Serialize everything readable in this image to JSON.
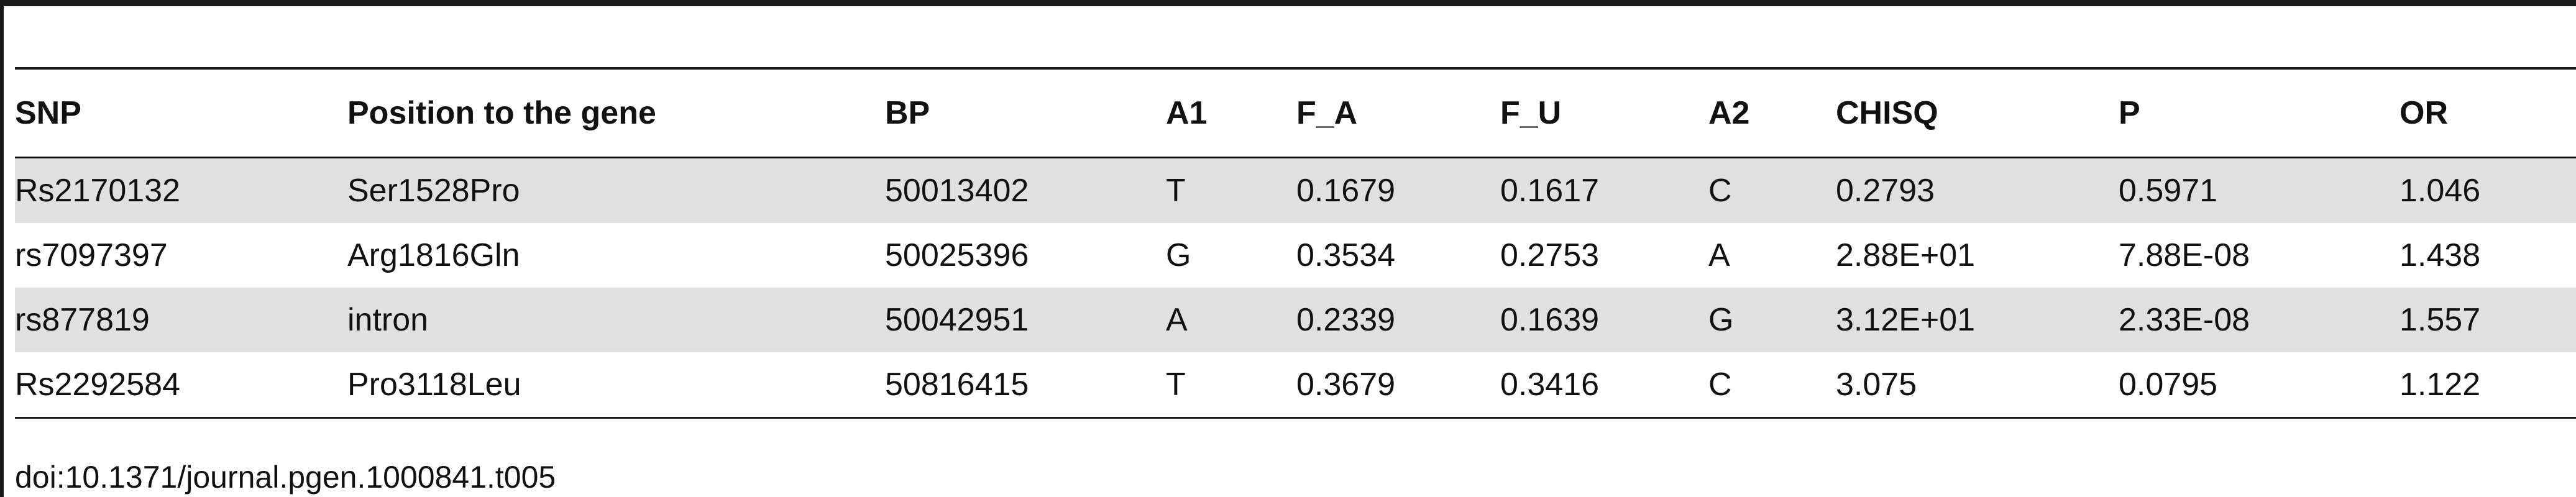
{
  "table": {
    "headers": [
      "SNP",
      "Position to the gene",
      "BP",
      "A1",
      "F_A",
      "F_U",
      "A2",
      "CHISQ",
      "P",
      "OR"
    ],
    "rows": [
      [
        "Rs2170132",
        "Ser1528Pro",
        "50013402",
        "T",
        "0.1679",
        "0.1617",
        "C",
        "0.2793",
        "0.5971",
        "1.046"
      ],
      [
        "rs7097397",
        "Arg1816Gln",
        "50025396",
        "G",
        "0.3534",
        "0.2753",
        "A",
        "2.88E+01",
        "7.88E-08",
        "1.438"
      ],
      [
        "rs877819",
        "intron",
        "50042951",
        "A",
        "0.2339",
        "0.1639",
        "G",
        "3.12E+01",
        "2.33E-08",
        "1.557"
      ],
      [
        "Rs2292584",
        "Pro3118Leu",
        "50816415",
        "T",
        "0.3679",
        "0.3416",
        "C",
        "3.075",
        "0.0795",
        "1.122"
      ]
    ]
  },
  "footer": {
    "doi": "doi:10.1371/journal.pgen.1000841.t005"
  },
  "colors": {
    "row_shade": "#e0e0e0",
    "rule": "#1a1a1a",
    "text": "#111111"
  }
}
